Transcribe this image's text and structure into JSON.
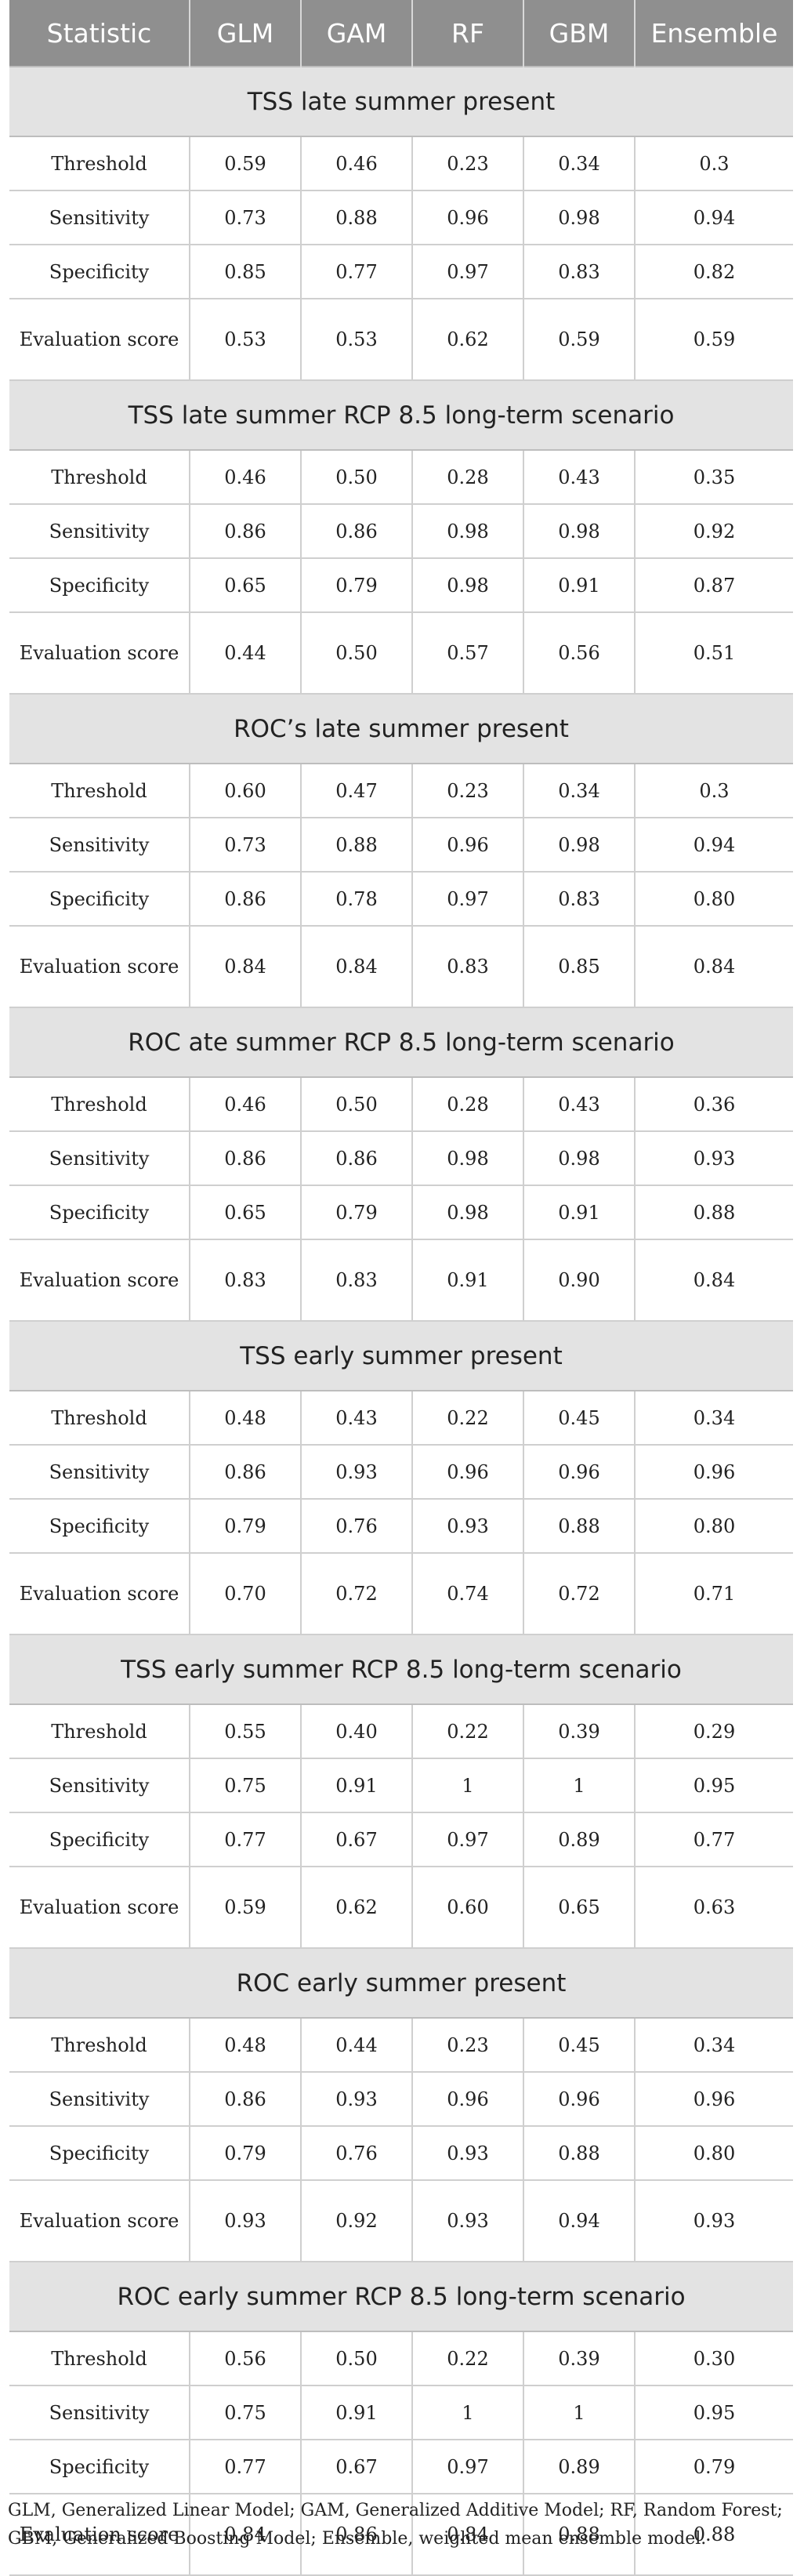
{
  "table": {
    "headers": [
      "Statistic",
      "GLM",
      "GAM",
      "RF",
      "GBM",
      "Ensemble"
    ],
    "sections": [
      {
        "title": "TSS late summer present",
        "rows": [
          {
            "label": "Threshold",
            "values": [
              "0.59",
              "0.46",
              "0.23",
              "0.34",
              "0.3"
            ]
          },
          {
            "label": "Sensitivity",
            "values": [
              "0.73",
              "0.88",
              "0.96",
              "0.98",
              "0.94"
            ]
          },
          {
            "label": "Specificity",
            "values": [
              "0.85",
              "0.77",
              "0.97",
              "0.83",
              "0.82"
            ]
          },
          {
            "label": "Evaluation score",
            "values": [
              "0.53",
              "0.53",
              "0.62",
              "0.59",
              "0.59"
            ]
          }
        ]
      },
      {
        "title": "TSS late summer RCP 8.5 long-term scenario",
        "rows": [
          {
            "label": "Threshold",
            "values": [
              "0.46",
              "0.50",
              "0.28",
              "0.43",
              "0.35"
            ]
          },
          {
            "label": "Sensitivity",
            "values": [
              "0.86",
              "0.86",
              "0.98",
              "0.98",
              "0.92"
            ]
          },
          {
            "label": "Specificity",
            "values": [
              "0.65",
              "0.79",
              "0.98",
              "0.91",
              "0.87"
            ]
          },
          {
            "label": "Evaluation score",
            "values": [
              "0.44",
              "0.50",
              "0.57",
              "0.56",
              "0.51"
            ]
          }
        ]
      },
      {
        "title": "ROC’s late summer present",
        "rows": [
          {
            "label": "Threshold",
            "values": [
              "0.60",
              "0.47",
              "0.23",
              "0.34",
              "0.3"
            ]
          },
          {
            "label": "Sensitivity",
            "values": [
              "0.73",
              "0.88",
              "0.96",
              "0.98",
              "0.94"
            ]
          },
          {
            "label": "Specificity",
            "values": [
              "0.86",
              "0.78",
              "0.97",
              "0.83",
              "0.80"
            ]
          },
          {
            "label": "Evaluation score",
            "values": [
              "0.84",
              "0.84",
              "0.83",
              "0.85",
              "0.84"
            ]
          }
        ]
      },
      {
        "title": "ROC ate summer RCP 8.5 long-term scenario",
        "rows": [
          {
            "label": "Threshold",
            "values": [
              "0.46",
              "0.50",
              "0.28",
              "0.43",
              "0.36"
            ]
          },
          {
            "label": "Sensitivity",
            "values": [
              "0.86",
              "0.86",
              "0.98",
              "0.98",
              "0.93"
            ]
          },
          {
            "label": "Specificity",
            "values": [
              "0.65",
              "0.79",
              "0.98",
              "0.91",
              "0.88"
            ]
          },
          {
            "label": "Evaluation score",
            "values": [
              "0.83",
              "0.83",
              "0.91",
              "0.90",
              "0.84"
            ]
          }
        ]
      },
      {
        "title": "TSS early summer present",
        "rows": [
          {
            "label": "Threshold",
            "values": [
              "0.48",
              "0.43",
              "0.22",
              "0.45",
              "0.34"
            ]
          },
          {
            "label": "Sensitivity",
            "values": [
              "0.86",
              "0.93",
              "0.96",
              "0.96",
              "0.96"
            ]
          },
          {
            "label": "Specificity",
            "values": [
              "0.79",
              "0.76",
              "0.93",
              "0.88",
              "0.80"
            ]
          },
          {
            "label": "Evaluation score",
            "values": [
              "0.70",
              "0.72",
              "0.74",
              "0.72",
              "0.71"
            ]
          }
        ]
      },
      {
        "title": "TSS early summer RCP 8.5 long-term scenario",
        "rows": [
          {
            "label": "Threshold",
            "values": [
              "0.55",
              "0.40",
              "0.22",
              "0.39",
              "0.29"
            ]
          },
          {
            "label": "Sensitivity",
            "values": [
              "0.75",
              "0.91",
              "1",
              "1",
              "0.95"
            ]
          },
          {
            "label": "Specificity",
            "values": [
              "0.77",
              "0.67",
              "0.97",
              "0.89",
              "0.77"
            ]
          },
          {
            "label": "Evaluation score",
            "values": [
              "0.59",
              "0.62",
              "0.60",
              "0.65",
              "0.63"
            ]
          }
        ]
      },
      {
        "title": "ROC early summer present",
        "rows": [
          {
            "label": "Threshold",
            "values": [
              "0.48",
              "0.44",
              "0.23",
              "0.45",
              "0.34"
            ]
          },
          {
            "label": "Sensitivity",
            "values": [
              "0.86",
              "0.93",
              "0.96",
              "0.96",
              "0.96"
            ]
          },
          {
            "label": "Specificity",
            "values": [
              "0.79",
              "0.76",
              "0.93",
              "0.88",
              "0.80"
            ]
          },
          {
            "label": "Evaluation score",
            "values": [
              "0.93",
              "0.92",
              "0.93",
              "0.94",
              "0.93"
            ]
          }
        ]
      },
      {
        "title": "ROC early summer RCP 8.5 long-term scenario",
        "rows": [
          {
            "label": "Threshold",
            "values": [
              "0.56",
              "0.50",
              "0.22",
              "0.39",
              "0.30"
            ]
          },
          {
            "label": "Sensitivity",
            "values": [
              "0.75",
              "0.91",
              "1",
              "1",
              "0.95"
            ]
          },
          {
            "label": "Specificity",
            "values": [
              "0.77",
              "0.67",
              "0.97",
              "0.89",
              "0.79"
            ]
          },
          {
            "label": "Evaluation score",
            "values": [
              "0.84",
              "0.86",
              "0.84",
              "0.88",
              "0.88"
            ]
          }
        ]
      }
    ]
  },
  "footnote": "GLM, Generalized Linear Model; GAM, Generalized Additive Model; RF, Random Forest; GBM, Generalized Boosting Model; Ensemble, weighted mean ensemble model."
}
